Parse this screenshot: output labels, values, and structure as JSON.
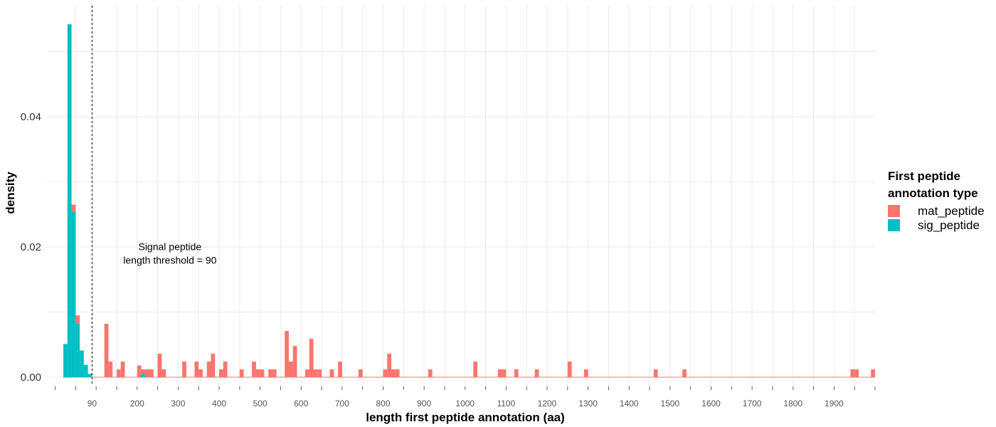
{
  "chart_data": {
    "type": "bar",
    "stacked": true,
    "xlabel": "length first peptide annotation (aa)",
    "ylabel": "density",
    "xlim": [
      -20,
      2000
    ],
    "ylim": [
      0,
      0.055
    ],
    "bin_width": 10,
    "x_ticks": [
      90,
      200,
      300,
      400,
      500,
      600,
      700,
      800,
      900,
      1000,
      1100,
      1200,
      1300,
      1400,
      1500,
      1600,
      1700,
      1800,
      1900
    ],
    "x_tick_labels": [
      "90",
      "200",
      "300",
      "400",
      "500",
      "600",
      "700",
      "800",
      "900",
      "1000",
      "1100",
      "1200",
      "1300",
      "1400",
      "1500",
      "1600",
      "1700",
      "1800",
      "1900"
    ],
    "y_ticks": [
      0,
      0.02,
      0.04
    ],
    "y_tick_labels": [
      "0.00",
      "0.02",
      "0.04"
    ],
    "grid": true,
    "threshold": {
      "x": 90,
      "style": "dashed"
    },
    "annotation": {
      "lines": [
        "Signal peptide",
        "length threshold = 90"
      ],
      "x": 280,
      "y": 0.0195
    },
    "legend": {
      "title_lines": [
        "First peptide",
        "annotation type"
      ],
      "position": "right",
      "entries": [
        {
          "name": "mat_peptide",
          "color": "#F8766D"
        },
        {
          "name": "sig_peptide",
          "color": "#00BFC4"
        }
      ]
    },
    "series": [
      {
        "name": "sig_peptide",
        "color": "#00BFC4",
        "bins": [
          {
            "x": 20,
            "y": 0.0051
          },
          {
            "x": 30,
            "y": 0.0542
          },
          {
            "x": 40,
            "y": 0.0254
          },
          {
            "x": 50,
            "y": 0.0082
          },
          {
            "x": 60,
            "y": 0.0041
          },
          {
            "x": 70,
            "y": 0.0019
          },
          {
            "x": 80,
            "y": 0.0005
          },
          {
            "x": 210,
            "y": 0.0005
          }
        ]
      },
      {
        "name": "mat_peptide",
        "color": "#F8766D",
        "bins": [
          {
            "x": 40,
            "y": 0.0011
          },
          {
            "x": 50,
            "y": 0.0013
          },
          {
            "x": 120,
            "y": 0.0082
          },
          {
            "x": 130,
            "y": 0.0024
          },
          {
            "x": 150,
            "y": 0.0012
          },
          {
            "x": 160,
            "y": 0.0024
          },
          {
            "x": 200,
            "y": 0.0018
          },
          {
            "x": 210,
            "y": 0.0007
          },
          {
            "x": 220,
            "y": 0.0012
          },
          {
            "x": 230,
            "y": 0.0012
          },
          {
            "x": 250,
            "y": 0.0036
          },
          {
            "x": 260,
            "y": 0.0012
          },
          {
            "x": 310,
            "y": 0.0024
          },
          {
            "x": 340,
            "y": 0.0024
          },
          {
            "x": 350,
            "y": 0.0012
          },
          {
            "x": 370,
            "y": 0.0024
          },
          {
            "x": 380,
            "y": 0.0036
          },
          {
            "x": 400,
            "y": 0.0012
          },
          {
            "x": 410,
            "y": 0.0024
          },
          {
            "x": 450,
            "y": 0.0012
          },
          {
            "x": 480,
            "y": 0.0024
          },
          {
            "x": 490,
            "y": 0.0012
          },
          {
            "x": 500,
            "y": 0.0012
          },
          {
            "x": 520,
            "y": 0.0012
          },
          {
            "x": 530,
            "y": 0.0012
          },
          {
            "x": 560,
            "y": 0.0071
          },
          {
            "x": 570,
            "y": 0.0024
          },
          {
            "x": 580,
            "y": 0.0048
          },
          {
            "x": 610,
            "y": 0.0012
          },
          {
            "x": 620,
            "y": 0.0059
          },
          {
            "x": 630,
            "y": 0.0012
          },
          {
            "x": 640,
            "y": 0.0012
          },
          {
            "x": 670,
            "y": 0.0012
          },
          {
            "x": 690,
            "y": 0.0024
          },
          {
            "x": 740,
            "y": 0.0012
          },
          {
            "x": 800,
            "y": 0.0012
          },
          {
            "x": 810,
            "y": 0.0036
          },
          {
            "x": 820,
            "y": 0.0012
          },
          {
            "x": 830,
            "y": 0.0012
          },
          {
            "x": 910,
            "y": 0.0012
          },
          {
            "x": 1020,
            "y": 0.0024
          },
          {
            "x": 1080,
            "y": 0.0012
          },
          {
            "x": 1090,
            "y": 0.0012
          },
          {
            "x": 1120,
            "y": 0.0012
          },
          {
            "x": 1170,
            "y": 0.0012
          },
          {
            "x": 1250,
            "y": 0.0024
          },
          {
            "x": 1290,
            "y": 0.0012
          },
          {
            "x": 1460,
            "y": 0.0012
          },
          {
            "x": 1530,
            "y": 0.0012
          },
          {
            "x": 1940,
            "y": 0.0012
          },
          {
            "x": 1950,
            "y": 0.0012
          },
          {
            "x": 1990,
            "y": 0.0012
          }
        ]
      }
    ]
  }
}
